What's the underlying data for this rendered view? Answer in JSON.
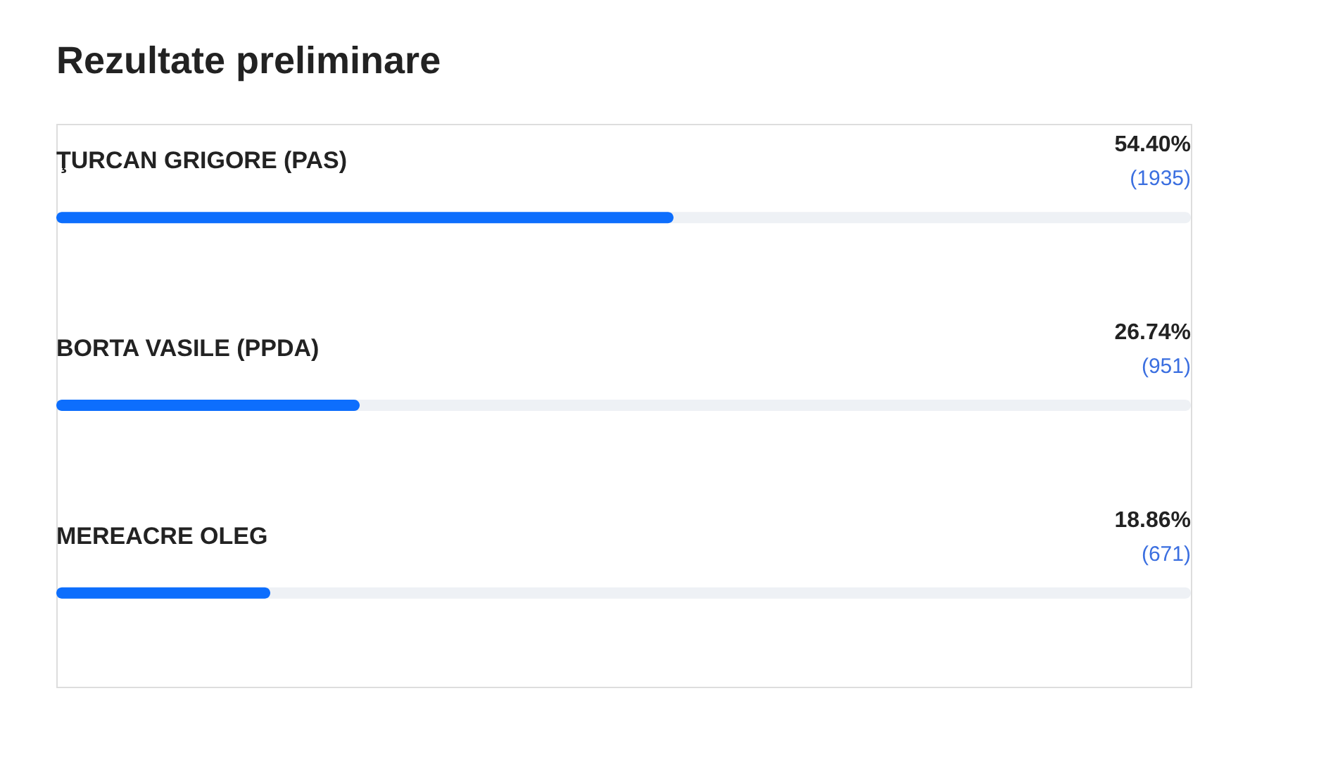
{
  "chart_data": {
    "type": "bar",
    "orientation": "horizontal",
    "title": "Rezultate preliminare",
    "categories": [
      "ŢURCAN GRIGORE  (PAS)",
      "BORTA VASILE  (PPDA)",
      "MEREACRE OLEG"
    ],
    "values": [
      54.4,
      26.74,
      18.86
    ],
    "value_labels": [
      "54.40%",
      "26.74%",
      "18.86%"
    ],
    "annotations": [
      "(1935)",
      "(951)",
      "(671)"
    ],
    "color": "#0d6efd",
    "xlim": [
      0,
      100
    ],
    "tick_labels": false
  }
}
